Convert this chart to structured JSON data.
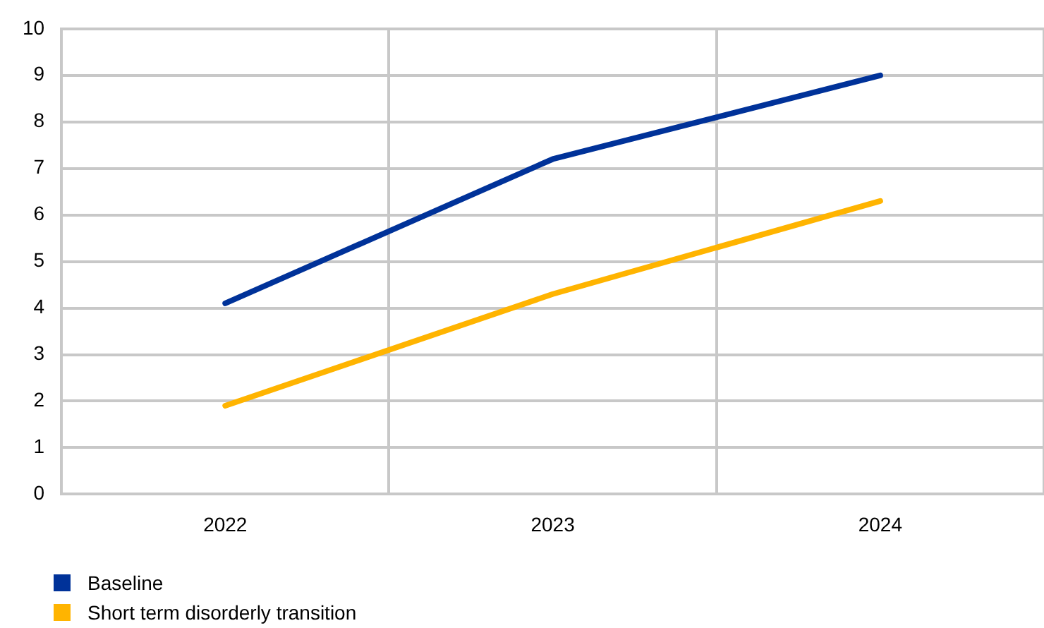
{
  "chart_data": {
    "type": "line",
    "categories": [
      "2022",
      "2023",
      "2024"
    ],
    "series": [
      {
        "name": "Baseline",
        "color": "#003299",
        "values": [
          4.1,
          7.2,
          9.0
        ]
      },
      {
        "name": "Short term disorderly transition",
        "color": "#ffb400",
        "values": [
          1.9,
          4.3,
          6.3
        ]
      }
    ],
    "ylim": [
      0,
      10
    ],
    "yticks": [
      0,
      1,
      2,
      3,
      4,
      5,
      6,
      7,
      8,
      9,
      10
    ],
    "grid": true,
    "legend": "bottom left",
    "marker": "none",
    "line_style": "solid"
  }
}
